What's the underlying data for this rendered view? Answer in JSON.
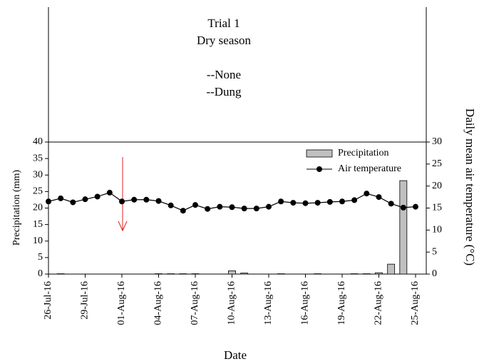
{
  "chart_data": {
    "type": "bar-line",
    "annotations": [
      "Trial 1",
      "Dry season",
      "--None",
      "--Dung"
    ],
    "xlabel": "Date",
    "ylabel": "Precipitation (mm)",
    "y2label": "Daily mean air temperature (°C)",
    "categories": [
      "26-Jul-16",
      null,
      null,
      "29-Jul-16",
      null,
      null,
      "01-Aug-16",
      null,
      null,
      "04-Aug-16",
      null,
      null,
      "07-Aug-16",
      null,
      null,
      "10-Aug-16",
      null,
      null,
      "13-Aug-16",
      null,
      null,
      "16-Aug-16",
      null,
      null,
      "19-Aug-16",
      null,
      null,
      "22-Aug-16",
      null,
      null,
      "25-Aug-16"
    ],
    "series": [
      {
        "name": "Precipitation",
        "color": "#c0c0c0",
        "values": [
          0,
          0.1,
          0,
          0,
          0,
          0,
          0,
          0,
          0,
          0.1,
          0.1,
          0.1,
          0.1,
          0,
          0,
          1,
          0.3,
          0,
          0,
          0.1,
          0,
          0,
          0.1,
          0,
          0,
          0.1,
          0.1,
          0.4,
          3,
          28.3,
          0
        ]
      },
      {
        "name": "Air temperature",
        "color": "#000000",
        "axis": "y2",
        "values": [
          16.5,
          17.2,
          16.3,
          17,
          17.6,
          18.5,
          16.5,
          16.9,
          16.9,
          16.6,
          15.6,
          14.4,
          15.7,
          14.8,
          15.3,
          15.2,
          14.9,
          14.9,
          15.3,
          16.5,
          16.2,
          16.1,
          16.2,
          16.4,
          16.5,
          16.8,
          18.3,
          17.5,
          16,
          15.1,
          15.3
        ]
      }
    ],
    "ylim": [
      0,
      40
    ],
    "yticks": [
      0,
      5,
      10,
      15,
      20,
      25,
      30,
      35,
      40
    ],
    "y2lim": [
      0,
      30
    ],
    "y2ticks": [
      0,
      5,
      10,
      15,
      20,
      25,
      30
    ],
    "legend": "upper right"
  }
}
